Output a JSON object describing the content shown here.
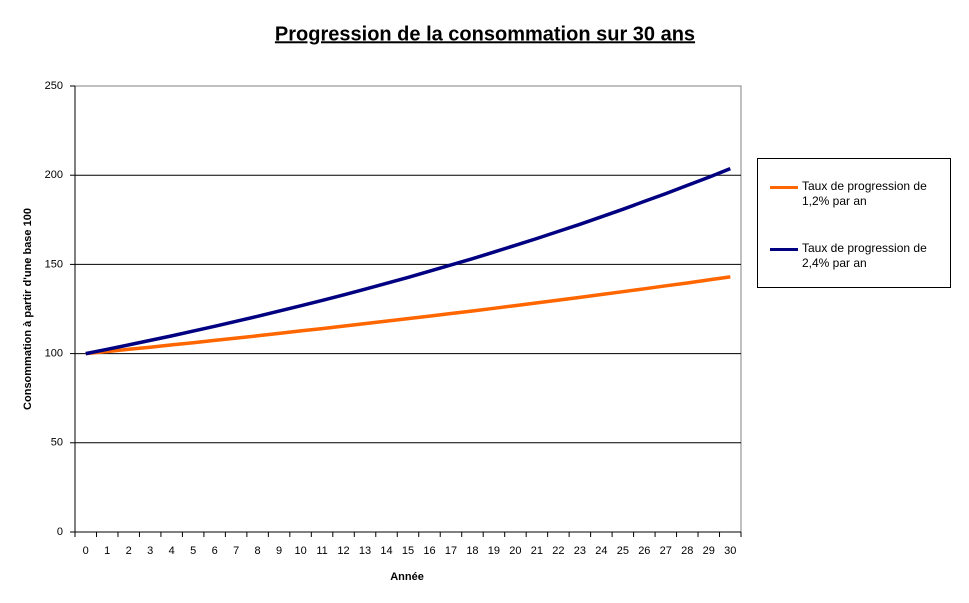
{
  "chart_data": {
    "type": "line",
    "title": "Progression de la consommation sur 30 ans",
    "x_label": "Année",
    "y_label": "Consommation à partir d'une base 100",
    "categories": [
      "0",
      "1",
      "2",
      "3",
      "4",
      "5",
      "6",
      "7",
      "8",
      "9",
      "10",
      "11",
      "12",
      "13",
      "14",
      "15",
      "16",
      "17",
      "18",
      "19",
      "20",
      "21",
      "22",
      "23",
      "24",
      "25",
      "26",
      "27",
      "28",
      "29",
      "30"
    ],
    "series": [
      {
        "name": "Taux de progression de 1,2% par an",
        "color": "#ff6600",
        "values": [
          100,
          101.2,
          102.4,
          103.6,
          104.9,
          106.1,
          107.4,
          108.7,
          110.0,
          111.3,
          112.7,
          114.0,
          115.4,
          116.8,
          118.2,
          119.6,
          121.0,
          122.5,
          123.9,
          125.4,
          126.9,
          128.4,
          130.0,
          131.5,
          133.1,
          134.7,
          136.3,
          138.0,
          139.6,
          141.3,
          143.0
        ]
      },
      {
        "name": "Taux de progression de 2,4% par an",
        "color": "#000080",
        "values": [
          100,
          102.4,
          104.9,
          107.4,
          109.9,
          112.6,
          115.3,
          118.1,
          120.9,
          123.8,
          126.8,
          129.8,
          132.9,
          136.1,
          139.4,
          142.7,
          146.2,
          149.7,
          153.2,
          156.9,
          160.7,
          164.5,
          168.5,
          172.5,
          176.7,
          180.9,
          185.3,
          189.7,
          194.3,
          198.9,
          203.7
        ]
      }
    ],
    "ylim": [
      0,
      250
    ],
    "yticks": [
      0,
      50,
      100,
      150,
      200,
      250
    ],
    "grid": true,
    "legend": "right"
  }
}
